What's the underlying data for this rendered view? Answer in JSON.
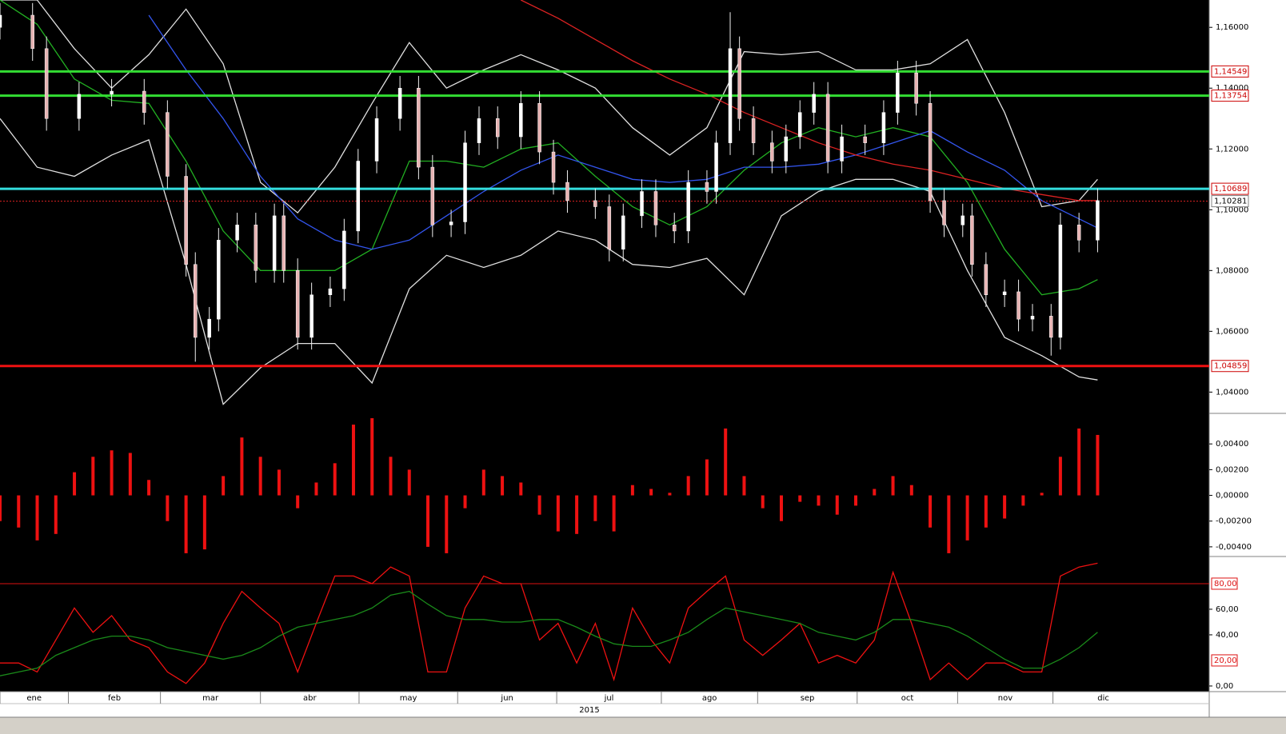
{
  "chart_data": [
    {
      "type": "candlestick",
      "x": [
        0,
        7,
        10,
        17,
        24,
        31,
        36,
        40,
        42,
        45,
        47,
        51,
        55,
        59,
        61,
        64,
        67,
        71,
        74,
        77,
        81,
        86,
        90,
        93,
        97,
        100,
        103,
        107,
        112,
        116,
        119,
        122,
        128,
        131,
        134,
        138,
        141,
        145,
        148,
        152,
        154,
        157,
        159,
        162,
        166,
        169,
        172,
        175,
        178,
        181,
        186,
        190,
        193,
        197,
        200,
        203,
        207,
        209,
        212,
        216,
        219,
        222,
        226,
        228,
        232,
        236
      ],
      "open": [
        1.16,
        1.164,
        1.153,
        1.13,
        1.138,
        1.139,
        1.132,
        1.111,
        1.082,
        1.058,
        1.064,
        1.09,
        1.095,
        1.08,
        1.098,
        1.08,
        1.058,
        1.072,
        1.074,
        1.093,
        1.116,
        1.13,
        1.14,
        1.114,
        1.095,
        1.096,
        1.122,
        1.13,
        1.124,
        1.135,
        1.119,
        1.109,
        1.103,
        1.101,
        1.087,
        1.098,
        1.106,
        1.095,
        1.093,
        1.109,
        1.106,
        1.122,
        1.153,
        1.13,
        1.122,
        1.116,
        1.124,
        1.132,
        1.138,
        1.116,
        1.124,
        1.122,
        1.132,
        1.145,
        1.135,
        1.103,
        1.095,
        1.098,
        1.082,
        1.072,
        1.073,
        1.064,
        1.065,
        1.058,
        1.095,
        1.09
      ],
      "high": [
        1.168,
        1.168,
        1.157,
        1.142,
        1.143,
        1.143,
        1.136,
        1.115,
        1.086,
        1.068,
        1.094,
        1.099,
        1.099,
        1.102,
        1.102,
        1.084,
        1.076,
        1.078,
        1.097,
        1.12,
        1.134,
        1.144,
        1.144,
        1.118,
        1.1,
        1.126,
        1.134,
        1.134,
        1.139,
        1.139,
        1.123,
        1.113,
        1.107,
        1.105,
        1.102,
        1.11,
        1.11,
        1.099,
        1.113,
        1.113,
        1.126,
        1.165,
        1.157,
        1.134,
        1.126,
        1.128,
        1.136,
        1.142,
        1.142,
        1.128,
        1.128,
        1.136,
        1.149,
        1.149,
        1.139,
        1.107,
        1.102,
        1.102,
        1.086,
        1.077,
        1.077,
        1.069,
        1.069,
        1.099,
        1.099,
        1.107
      ],
      "low": [
        1.156,
        1.149,
        1.126,
        1.126,
        1.134,
        1.128,
        1.107,
        1.078,
        1.05,
        1.054,
        1.06,
        1.086,
        1.076,
        1.076,
        1.076,
        1.054,
        1.054,
        1.068,
        1.07,
        1.089,
        1.112,
        1.126,
        1.11,
        1.091,
        1.091,
        1.092,
        1.118,
        1.12,
        1.12,
        1.115,
        1.105,
        1.099,
        1.097,
        1.083,
        1.083,
        1.094,
        1.091,
        1.089,
        1.089,
        1.102,
        1.102,
        1.118,
        1.126,
        1.118,
        1.112,
        1.112,
        1.12,
        1.128,
        1.112,
        1.112,
        1.118,
        1.118,
        1.128,
        1.131,
        1.099,
        1.091,
        1.091,
        1.078,
        1.068,
        1.068,
        1.06,
        1.06,
        1.052,
        1.054,
        1.086,
        1.086
      ],
      "close": [
        1.164,
        1.153,
        1.13,
        1.138,
        1.139,
        1.132,
        1.111,
        1.082,
        1.058,
        1.064,
        1.09,
        1.095,
        1.08,
        1.098,
        1.08,
        1.058,
        1.072,
        1.074,
        1.093,
        1.116,
        1.13,
        1.14,
        1.114,
        1.095,
        1.096,
        1.122,
        1.13,
        1.124,
        1.135,
        1.119,
        1.109,
        1.103,
        1.101,
        1.087,
        1.098,
        1.106,
        1.095,
        1.093,
        1.109,
        1.106,
        1.122,
        1.153,
        1.13,
        1.122,
        1.116,
        1.124,
        1.132,
        1.138,
        1.116,
        1.124,
        1.122,
        1.132,
        1.145,
        1.135,
        1.103,
        1.095,
        1.098,
        1.082,
        1.072,
        1.073,
        1.064,
        1.065,
        1.058,
        1.095,
        1.09,
        1.103
      ],
      "up_color": "#ffffff",
      "down_color": "#e8b4b4",
      "overlays": {
        "x": [
          0,
          8,
          16,
          24,
          32,
          40,
          48,
          56,
          64,
          72,
          80,
          88,
          96,
          104,
          112,
          120,
          128,
          136,
          144,
          152,
          160,
          168,
          176,
          184,
          192,
          200,
          208,
          216,
          224,
          232,
          236
        ],
        "series": [
          {
            "color": "#e0e0e0",
            "values": [
              1.169,
              1.169,
              1.153,
              1.14,
              1.151,
              1.166,
              1.148,
              1.109,
              1.099,
              1.114,
              1.135,
              1.155,
              1.14,
              1.146,
              1.151,
              1.146,
              1.14,
              1.127,
              1.118,
              1.127,
              1.152,
              1.151,
              1.152,
              1.146,
              1.146,
              1.148,
              1.156,
              1.132,
              1.101,
              1.103,
              1.11
            ]
          },
          {
            "color": "#e0e0e0",
            "values": [
              1.13,
              1.114,
              1.111,
              1.118,
              1.123,
              1.082,
              1.036,
              1.048,
              1.056,
              1.056,
              1.043,
              1.074,
              1.085,
              1.081,
              1.085,
              1.093,
              1.09,
              1.082,
              1.081,
              1.084,
              1.072,
              1.098,
              1.106,
              1.11,
              1.11,
              1.106,
              1.08,
              1.058,
              1.052,
              1.045,
              1.044
            ]
          },
          {
            "color": "#22b022",
            "values": [
              1.169,
              1.161,
              1.143,
              1.136,
              1.135,
              1.116,
              1.093,
              1.08,
              1.08,
              1.08,
              1.087,
              1.116,
              1.116,
              1.114,
              1.12,
              1.122,
              1.111,
              1.101,
              1.095,
              1.101,
              1.113,
              1.122,
              1.127,
              1.124,
              1.127,
              1.124,
              1.109,
              1.087,
              1.072,
              1.074,
              1.077
            ]
          },
          {
            "color": "#3355ee",
            "values": [
              null,
              null,
              null,
              null,
              1.164,
              1.146,
              1.13,
              1.111,
              1.097,
              1.09,
              1.087,
              1.09,
              1.098,
              1.106,
              1.113,
              1.118,
              1.114,
              1.11,
              1.109,
              1.11,
              1.114,
              1.114,
              1.115,
              1.118,
              1.122,
              1.126,
              1.119,
              1.113,
              1.103,
              1.097,
              1.094
            ]
          },
          {
            "color": "#dd2222",
            "values": [
              null,
              null,
              null,
              null,
              null,
              null,
              null,
              null,
              null,
              null,
              null,
              null,
              null,
              null,
              1.169,
              1.163,
              1.156,
              1.149,
              1.143,
              1.138,
              1.132,
              1.127,
              1.122,
              1.118,
              1.115,
              1.113,
              1.11,
              1.107,
              1.105,
              1.103,
              1.103
            ]
          }
        ]
      },
      "levels": [
        {
          "value": 1.14549,
          "label": "1,14549",
          "color": "#33dd33",
          "style": "solid",
          "label_color": "#cc0000"
        },
        {
          "value": 1.13754,
          "label": "1,13754",
          "color": "#33dd33",
          "style": "solid",
          "label_color": "#cc0000"
        },
        {
          "value": 1.10689,
          "label": "1,10689",
          "color": "#33dddd",
          "style": "solid",
          "label_color": "#cc0000"
        },
        {
          "value": 1.10281,
          "label": "1,10281",
          "color": "#dd2222",
          "style": "dotted",
          "label_color": "#000000"
        },
        {
          "value": 1.04859,
          "label": "1,04859",
          "color": "#ee1111",
          "style": "solid",
          "label_color": "#cc0000"
        }
      ],
      "ylim": [
        1.033,
        1.169
      ],
      "yticks": [
        {
          "value": 1.04,
          "label": "1,04000"
        },
        {
          "value": 1.06,
          "label": "1,06000"
        },
        {
          "value": 1.08,
          "label": "1,08000"
        },
        {
          "value": 1.1,
          "label": "1,10000"
        },
        {
          "value": 1.12,
          "label": "1,12000"
        },
        {
          "value": 1.14,
          "label": "1,14000"
        },
        {
          "value": 1.16,
          "label": "1,16000"
        }
      ],
      "xlim": [
        0,
        260
      ],
      "xticks": [
        {
          "value": 0,
          "label": "ene"
        },
        {
          "value": 14.7,
          "label": "feb"
        },
        {
          "value": 34.5,
          "label": "mar"
        },
        {
          "value": 56,
          "label": "abr"
        },
        {
          "value": 77.2,
          "label": "may"
        },
        {
          "value": 98.4,
          "label": "jun"
        },
        {
          "value": 119.7,
          "label": "jul"
        },
        {
          "value": 142.2,
          "label": "ago"
        },
        {
          "value": 162.9,
          "label": "sep"
        },
        {
          "value": 184.3,
          "label": "oct"
        },
        {
          "value": 205.9,
          "label": "nov"
        },
        {
          "value": 226.4,
          "label": "dic"
        }
      ],
      "xlabel": "2015"
    },
    {
      "type": "bar",
      "x": [
        0,
        4,
        8,
        12,
        16,
        20,
        24,
        28,
        32,
        36,
        40,
        44,
        48,
        52,
        56,
        60,
        64,
        68,
        72,
        76,
        80,
        84,
        88,
        92,
        96,
        100,
        104,
        108,
        112,
        116,
        120,
        124,
        128,
        132,
        136,
        140,
        144,
        148,
        152,
        156,
        160,
        164,
        168,
        172,
        176,
        180,
        184,
        188,
        192,
        196,
        200,
        204,
        208,
        212,
        216,
        220,
        224,
        228,
        232,
        236
      ],
      "values": [
        -0.002,
        -0.0025,
        -0.0035,
        -0.003,
        0.0018,
        0.003,
        0.0035,
        0.0033,
        0.0012,
        -0.002,
        -0.0045,
        -0.0042,
        0.0015,
        0.0045,
        0.003,
        0.002,
        -0.001,
        0.001,
        0.0025,
        0.0055,
        0.006,
        0.003,
        0.002,
        -0.004,
        -0.0045,
        -0.001,
        0.002,
        0.0015,
        0.001,
        -0.0015,
        -0.0028,
        -0.003,
        -0.002,
        -0.0028,
        0.0008,
        0.0005,
        0.0002,
        0.0015,
        0.0028,
        0.0052,
        0.0015,
        -0.001,
        -0.002,
        -0.0005,
        -0.0008,
        -0.0015,
        -0.0008,
        0.0005,
        0.0015,
        0.0008,
        -0.0025,
        -0.0045,
        -0.0035,
        -0.0025,
        -0.0018,
        -0.0008,
        0.0002,
        0.003,
        0.0052,
        0.0047
      ],
      "color": "#ee1111",
      "ylim": [
        -0.00469,
        0.006375
      ],
      "yticks": [
        {
          "value": -0.004,
          "label": "-0,00400"
        },
        {
          "value": -0.002,
          "label": "-0,00200"
        },
        {
          "value": 0,
          "label": "0,00000"
        },
        {
          "value": 0.002,
          "label": "0,00200"
        },
        {
          "value": 0.004,
          "label": "0,00400"
        }
      ],
      "xlim": [
        0,
        260
      ]
    },
    {
      "type": "line",
      "x": [
        0,
        4,
        8,
        12,
        16,
        20,
        24,
        28,
        32,
        36,
        40,
        44,
        48,
        52,
        56,
        60,
        64,
        68,
        72,
        76,
        80,
        84,
        88,
        92,
        96,
        100,
        104,
        108,
        112,
        116,
        120,
        124,
        128,
        132,
        136,
        140,
        144,
        148,
        152,
        156,
        160,
        164,
        168,
        172,
        176,
        180,
        184,
        188,
        192,
        196,
        200,
        204,
        208,
        212,
        216,
        220,
        224,
        228,
        232,
        236
      ],
      "series": [
        {
          "color": "#ee1111",
          "values": [
            18,
            18,
            11,
            36,
            61,
            42,
            55,
            36,
            30,
            11,
            2,
            18,
            49,
            74,
            61,
            49,
            11,
            49,
            86,
            86,
            80,
            93,
            86,
            11,
            11,
            61,
            86,
            80,
            80,
            36,
            49,
            18,
            49,
            5,
            61,
            36,
            18,
            61,
            74,
            86,
            36,
            24,
            36,
            49,
            18,
            24,
            18,
            36,
            89,
            49,
            5,
            18,
            5,
            18,
            18,
            11,
            11,
            86,
            93,
            96
          ]
        },
        {
          "color": "#1a8a1a",
          "values": [
            8,
            11,
            14,
            24,
            30,
            36,
            39,
            39,
            36,
            30,
            27,
            24,
            21,
            24,
            30,
            39,
            46,
            49,
            52,
            55,
            61,
            71,
            74,
            64,
            55,
            52,
            52,
            50,
            50,
            52,
            52,
            46,
            39,
            33,
            31,
            31,
            36,
            42,
            52,
            61,
            58,
            55,
            52,
            49,
            42,
            39,
            36,
            42,
            52,
            52,
            49,
            46,
            39,
            30,
            21,
            14,
            14,
            21,
            30,
            42
          ]
        }
      ],
      "levels": [
        {
          "value": 20,
          "label": "20,00",
          "line": false
        },
        {
          "value": 80,
          "label": "80,00",
          "line": true
        }
      ],
      "level_color": "#dd1111",
      "ylim": [
        -4.4,
        100.6
      ],
      "yticks": [
        {
          "value": 0,
          "label": "0,00"
        },
        {
          "value": 40,
          "label": "40,00"
        },
        {
          "value": 60,
          "label": "60,00"
        }
      ],
      "xlim": [
        0,
        260
      ]
    }
  ]
}
